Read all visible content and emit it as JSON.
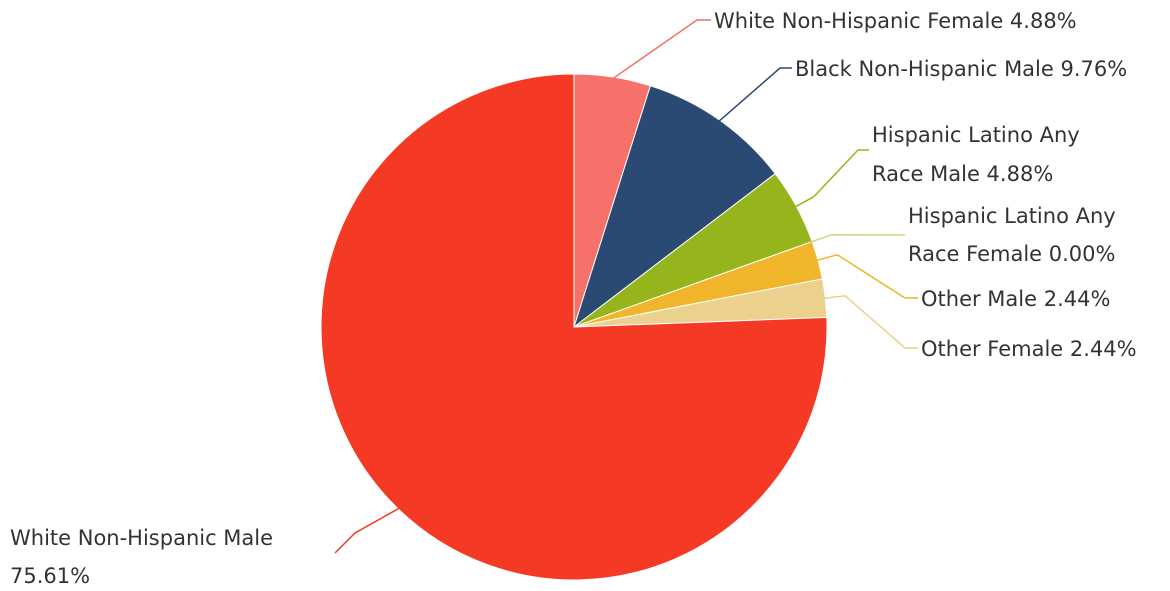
{
  "chart_data": {
    "type": "pie",
    "title": "",
    "slices": [
      {
        "label": "White Non-Hispanic Female",
        "value": 4.88,
        "display": "4.88%",
        "color": "#f5716a"
      },
      {
        "label": "Black Non-Hispanic Male",
        "value": 9.76,
        "display": "9.76%",
        "color": "#2b4a73"
      },
      {
        "label": "Hispanic Latino Any Race Male",
        "value": 4.88,
        "display": "4.88%",
        "color": "#96b51c"
      },
      {
        "label": "Hispanic Latino Any Race Female",
        "value": 0.0,
        "display": "0.00%",
        "color": "#c8d878"
      },
      {
        "label": "Other Male",
        "value": 2.44,
        "display": "2.44%",
        "color": "#f0b52a"
      },
      {
        "label": "Other Female",
        "value": 2.44,
        "display": "2.44%",
        "color": "#ecd08e"
      },
      {
        "label": "White Non-Hispanic Male",
        "value": 75.61,
        "display": "75.61%",
        "color": "#f43a24"
      }
    ],
    "labels": [
      {
        "lines": [
          "White Non-Hispanic Female 4.88%"
        ]
      },
      {
        "lines": [
          "Black Non-Hispanic Male 9.76%"
        ]
      },
      {
        "lines": [
          "Hispanic Latino Any",
          "Race Male 4.88%"
        ]
      },
      {
        "lines": [
          "Hispanic Latino Any",
          "Race Female 0.00%"
        ]
      },
      {
        "lines": [
          "Other Male 2.44%"
        ]
      },
      {
        "lines": [
          "Other Female 2.44%"
        ]
      },
      {
        "lines": [
          "White Non-Hispanic Male",
          "75.61%"
        ]
      }
    ]
  }
}
